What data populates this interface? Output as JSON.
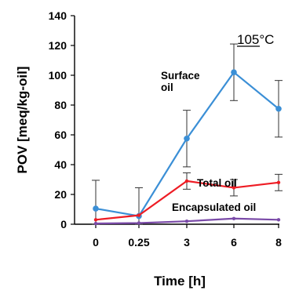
{
  "chart_data": {
    "type": "line",
    "categories": [
      "0",
      "0.25",
      "3",
      "6",
      "8"
    ],
    "xlabel": "Time [h]",
    "ylabel": "POV [meq/kg-oil]",
    "ylim": [
      0,
      140
    ],
    "yticks": [
      0,
      20,
      40,
      60,
      80,
      100,
      120,
      140
    ],
    "grid": false,
    "legend": "none",
    "temperature": {
      "number": "105",
      "unit": "°C"
    },
    "series": [
      {
        "name": "Surface oil",
        "label_lines": [
          "Surface",
          "oil"
        ],
        "color": "#3b8fd6",
        "markers": true,
        "values": [
          10.5,
          5.5,
          57.5,
          102,
          77.5
        ],
        "errors": [
          19,
          19,
          19,
          19,
          19
        ]
      },
      {
        "name": "Total oil",
        "label_lines": [
          "Total oil"
        ],
        "color": "#ee1c24",
        "markers": false,
        "values": [
          3,
          6,
          29,
          24.5,
          28
        ],
        "errors": [
          0,
          0,
          5.5,
          5.5,
          5.5
        ]
      },
      {
        "name": "Encapsulated oil",
        "label_lines": [
          "Encapsulated oil"
        ],
        "color": "#7a4aa8",
        "markers": false,
        "values": [
          0.5,
          0.8,
          2,
          3.8,
          3
        ],
        "errors": [
          0,
          0,
          0,
          0,
          0
        ]
      }
    ]
  }
}
